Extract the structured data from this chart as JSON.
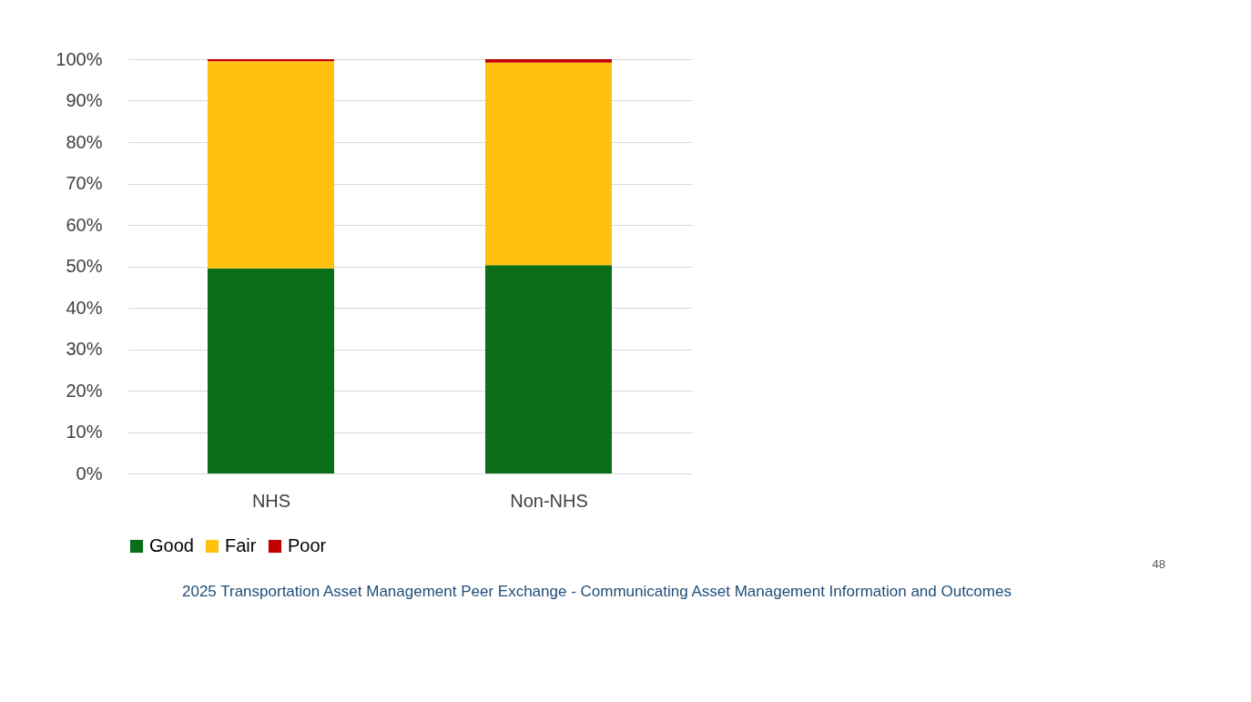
{
  "chart_data": {
    "type": "bar",
    "stacked": true,
    "categories": [
      "NHS",
      "Non-NHS"
    ],
    "series": [
      {
        "name": "Good",
        "color": "#0a6e18",
        "values": [
          49.5,
          50.3
        ]
      },
      {
        "name": "Fair",
        "color": "#ffc010",
        "values": [
          50.0,
          48.9
        ]
      },
      {
        "name": "Poor",
        "color": "#c00000",
        "values": [
          0.5,
          0.8
        ]
      }
    ],
    "ylim": [
      0,
      100
    ],
    "yticks": [
      {
        "value": 0,
        "label": "0%"
      },
      {
        "value": 10,
        "label": "10%"
      },
      {
        "value": 20,
        "label": "20%"
      },
      {
        "value": 30,
        "label": "30%"
      },
      {
        "value": 40,
        "label": "40%"
      },
      {
        "value": 50,
        "label": "50%"
      },
      {
        "value": 60,
        "label": "60%"
      },
      {
        "value": 70,
        "label": "70%"
      },
      {
        "value": 80,
        "label": "80%"
      },
      {
        "value": 90,
        "label": "90%"
      },
      {
        "value": 100,
        "label": "100%"
      }
    ],
    "grid": "y",
    "legend": "bottom",
    "annotations": [
      "48",
      "2025 Transportation Asset Management Peer Exchange - Communicating Asset Management Information and Outcomes"
    ]
  }
}
